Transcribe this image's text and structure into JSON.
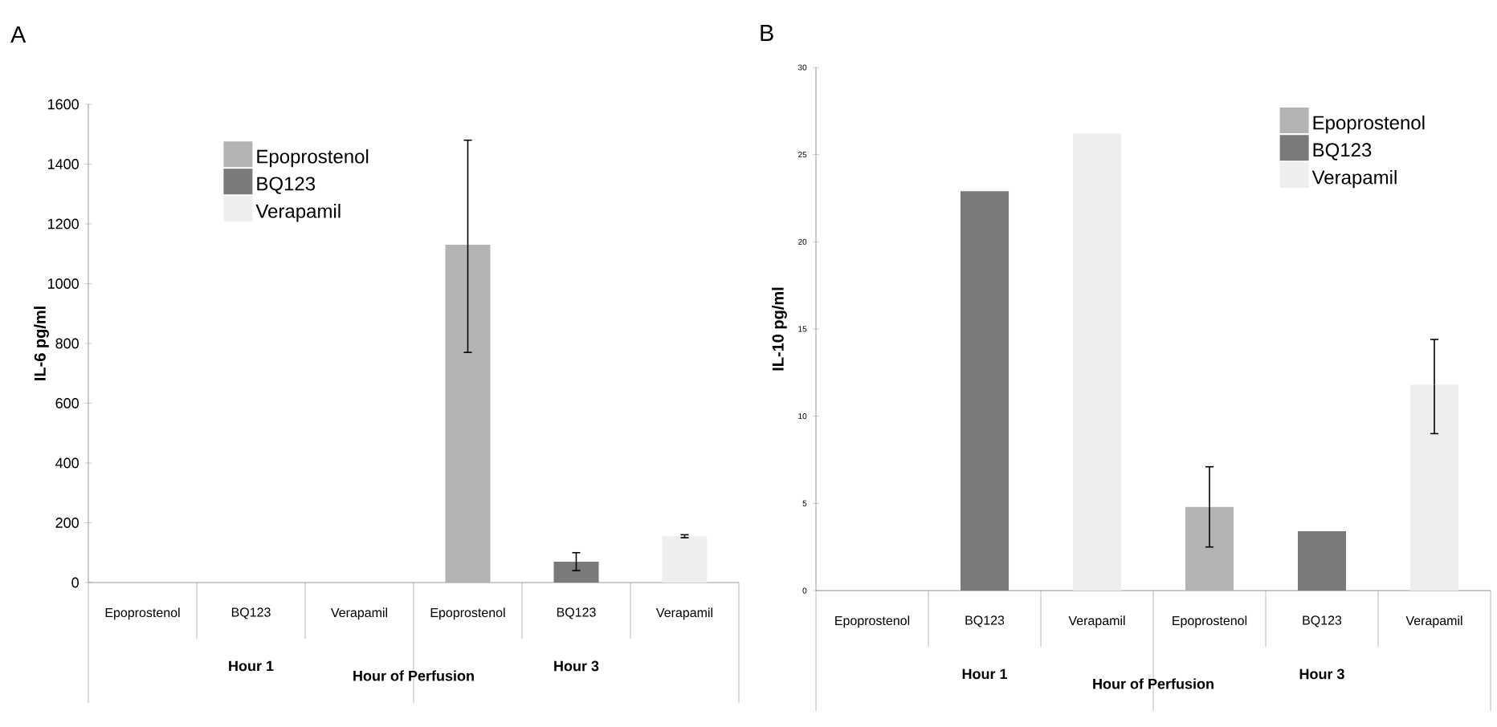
{
  "chart_data": [
    {
      "type": "bar",
      "title": "A",
      "ylabel": "IL-6 pg/ml",
      "xlabel": "Hour of Perfusion",
      "categories": [
        "Epoprostenol",
        "BQ123",
        "Verapamil",
        "Epoprostenol",
        "BQ123",
        "Verapamil"
      ],
      "annotations": [
        "Hour 1",
        "Hour 3"
      ],
      "series": [
        {
          "name": "Epoprostenol",
          "color": "#b3b3b3",
          "values": [
            null,
            null,
            null,
            1130,
            null,
            null
          ],
          "errors": [
            null,
            null,
            null,
            [
              770,
              1480
            ],
            null,
            null
          ]
        },
        {
          "name": "BQ123",
          "color": "#7a7a7a",
          "values": [
            null,
            null,
            null,
            null,
            70,
            null
          ],
          "errors": [
            null,
            null,
            null,
            null,
            [
              40,
              100
            ],
            null
          ]
        },
        {
          "name": "Verapamil",
          "color": "#eeeeee",
          "values": [
            null,
            null,
            null,
            null,
            null,
            155
          ],
          "errors": [
            null,
            null,
            null,
            null,
            null,
            5
          ]
        }
      ],
      "ylim": [
        0,
        1600
      ],
      "yticks": [
        0,
        200,
        400,
        600,
        800,
        1000,
        1200,
        1400,
        1600
      ],
      "legend": "top left"
    },
    {
      "type": "bar",
      "title": "B",
      "ylabel": "IL-10 pg/ml",
      "xlabel": "Hour of Perfusion",
      "categories": [
        "Epoprostenol",
        "BQ123",
        "Verapamil",
        "Epoprostenol",
        "BQ123",
        "Verapamil"
      ],
      "annotations": [
        "Hour 1",
        "Hour 3"
      ],
      "series": [
        {
          "name": "Epoprostenol",
          "color": "#b3b3b3",
          "values": [
            null,
            null,
            null,
            4.8,
            null,
            null
          ],
          "errors": [
            null,
            null,
            null,
            [
              2.5,
              7.1
            ],
            null,
            null
          ]
        },
        {
          "name": "BQ123",
          "color": "#7a7a7a",
          "values": [
            null,
            22.9,
            null,
            null,
            3.4,
            null
          ]
        },
        {
          "name": "Verapamil",
          "color": "#eeeeee",
          "values": [
            null,
            null,
            26.2,
            null,
            null,
            11.8
          ],
          "errors": [
            null,
            null,
            null,
            null,
            null,
            [
              9.0,
              14.4
            ]
          ]
        }
      ],
      "ylim": [
        0,
        30
      ],
      "yticks": [
        0,
        5,
        10,
        15,
        20,
        25,
        30
      ],
      "legend": "top right"
    }
  ]
}
